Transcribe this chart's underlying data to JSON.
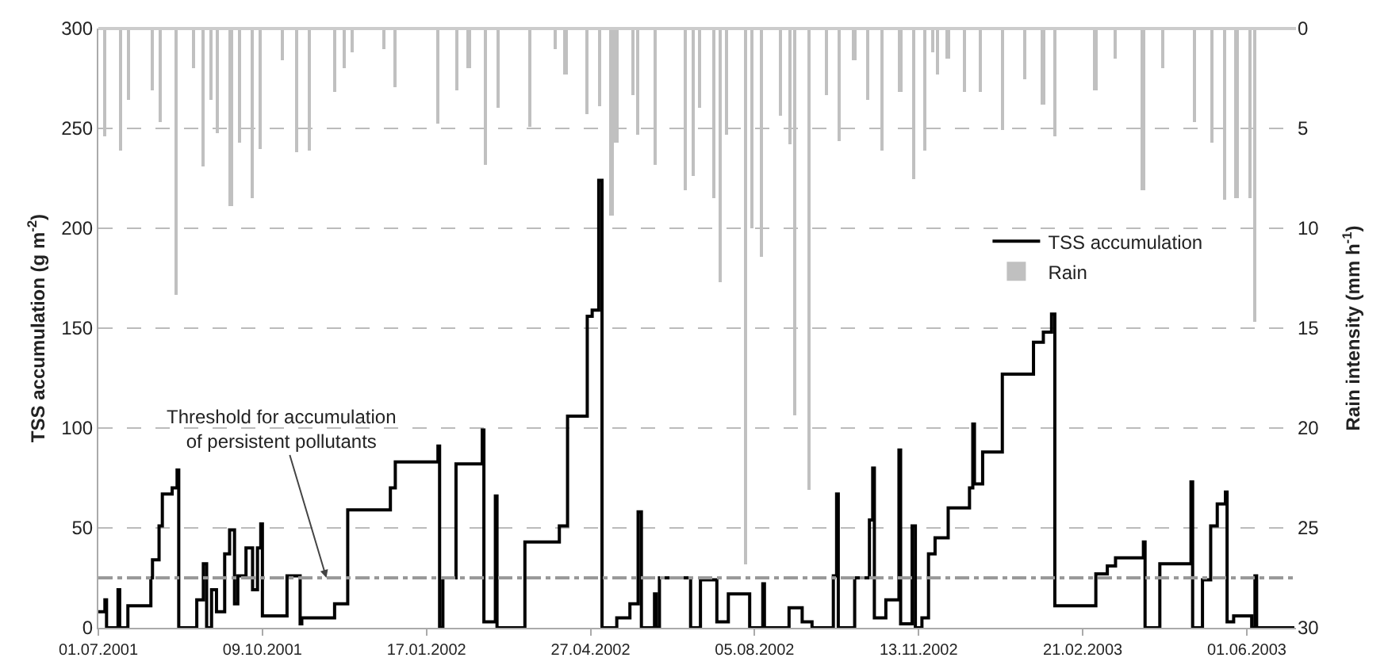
{
  "chart_data": {
    "type": "step",
    "ylabel": "TSS accumulation (g m$^{-2}$)",
    "y2label": "Rain intensity (mm h$^{-1}$)",
    "xlim": [
      "2001-07-01",
      "2003-07-01"
    ],
    "xticks": [
      {
        "value": "2001-07-01",
        "label": "01.07.2001"
      },
      {
        "value": "2001-10-09",
        "label": "09.10.2001"
      },
      {
        "value": "2002-01-17",
        "label": "17.01.2002"
      },
      {
        "value": "2002-04-27",
        "label": "27.04.2002"
      },
      {
        "value": "2002-08-05",
        "label": "05.08.2002"
      },
      {
        "value": "2002-11-13",
        "label": "13.11.2002"
      },
      {
        "value": "2003-02-21",
        "label": "21.02.2003"
      },
      {
        "value": "2003-06-01",
        "label": "01.06.2003"
      }
    ],
    "ylim": [
      0,
      300
    ],
    "yticks": [
      0,
      50,
      100,
      150,
      200,
      250,
      300
    ],
    "y2lim": [
      30,
      0
    ],
    "y2ticks": [
      0,
      5,
      10,
      15,
      20,
      25,
      30
    ],
    "grid": "y",
    "legend": "right",
    "series": [
      {
        "name": "TSS accumulation",
        "color": "#000000",
        "x": [
          "2001-07-01",
          "2001-07-05",
          "2001-07-06",
          "2001-07-13",
          "2001-07-14",
          "2001-07-19",
          "2001-08-02",
          "2001-08-03",
          "2001-08-07",
          "2001-08-09",
          "2001-08-15",
          "2001-08-18",
          "2001-08-19",
          "2001-08-30",
          "2001-09-03",
          "2001-09-05",
          "2001-09-08",
          "2001-09-11",
          "2001-09-16",
          "2001-09-19",
          "2001-09-22",
          "2001-09-24",
          "2001-09-29",
          "2001-10-03",
          "2001-10-06",
          "2001-10-08",
          "2001-10-09",
          "2001-10-24",
          "2001-11-01",
          "2001-11-02",
          "2001-11-22",
          "2001-11-30",
          "2001-12-26",
          "2001-12-29",
          "2002-01-24",
          "2002-01-25",
          "2002-01-27",
          "2002-02-04",
          "2002-02-20",
          "2002-02-21",
          "2002-02-28",
          "2002-03-01",
          "2002-03-18",
          "2002-03-21",
          "2002-04-08",
          "2002-04-13",
          "2002-04-25",
          "2002-04-28",
          "2002-05-02",
          "2002-05-04",
          "2002-05-13",
          "2002-05-21",
          "2002-05-26",
          "2002-05-28",
          "2002-06-05",
          "2002-06-06",
          "2002-06-08",
          "2002-06-27",
          "2002-07-03",
          "2002-07-13",
          "2002-07-20",
          "2002-08-02",
          "2002-08-10",
          "2002-08-11",
          "2002-08-26",
          "2002-09-03",
          "2002-09-09",
          "2002-09-22",
          "2002-09-24",
          "2002-09-25",
          "2002-10-05",
          "2002-10-14",
          "2002-10-16",
          "2002-10-17",
          "2002-10-24",
          "2002-11-01",
          "2002-11-02",
          "2002-11-09",
          "2002-11-11",
          "2002-11-15",
          "2002-11-19",
          "2002-11-23",
          "2002-12-01",
          "2002-12-14",
          "2002-12-16",
          "2002-12-17",
          "2002-12-22",
          "2003-01-03",
          "2003-01-22",
          "2003-01-28",
          "2003-02-02",
          "2003-02-04",
          "2003-03-01",
          "2003-03-08",
          "2003-03-13",
          "2003-03-30",
          "2003-03-31",
          "2003-04-09",
          "2003-04-28",
          "2003-04-29",
          "2003-05-05",
          "2003-05-10",
          "2003-05-14",
          "2003-05-19",
          "2003-05-20",
          "2003-05-24",
          "2003-06-04",
          "2003-06-06",
          "2003-06-07",
          "2003-06-30"
        ],
        "values": [
          8,
          14,
          0,
          19,
          0,
          11,
          25,
          34,
          51,
          67,
          70,
          79,
          0,
          14,
          32,
          0,
          19,
          8,
          37,
          49,
          12,
          26,
          40,
          19,
          40,
          52,
          6,
          26,
          2,
          5,
          12,
          59,
          70,
          83,
          91,
          0,
          25,
          82,
          99,
          3,
          66,
          0,
          43,
          43,
          51,
          106,
          156,
          159,
          224,
          0,
          5,
          12,
          58,
          0,
          17,
          0,
          25,
          0,
          24,
          3,
          17,
          0,
          22,
          0,
          10,
          3,
          0,
          26,
          67,
          0,
          25,
          54,
          80,
          5,
          14,
          89,
          2,
          51,
          0,
          5,
          37,
          45,
          60,
          70,
          102,
          72,
          88,
          127,
          143,
          148,
          157,
          11,
          27,
          31,
          35,
          43,
          0,
          32,
          73,
          0,
          24,
          51,
          62,
          68,
          3,
          6,
          0,
          26,
          0,
          0
        ]
      },
      {
        "name": "Rain",
        "type": "bar",
        "axis": "y2",
        "color": "#c0c0c0",
        "x": [
          "2001-07-05",
          "2001-07-15",
          "2001-07-20",
          "2001-08-03",
          "2001-08-08",
          "2001-08-18",
          "2001-08-28",
          "2001-09-03",
          "2001-09-08",
          "2001-09-12",
          "2001-09-20",
          "2001-09-25",
          "2001-10-03",
          "2001-10-08",
          "2001-10-21",
          "2001-10-30",
          "2001-11-07",
          "2001-11-22",
          "2001-11-28",
          "2001-12-03",
          "2001-12-22",
          "2001-12-29",
          "2002-01-24",
          "2002-02-05",
          "2002-02-12",
          "2002-02-22",
          "2002-03-02",
          "2002-03-21",
          "2002-04-06",
          "2002-04-12",
          "2002-04-25",
          "2002-05-03",
          "2002-05-10",
          "2002-05-13",
          "2002-05-23",
          "2002-05-26",
          "2002-06-06",
          "2002-06-24",
          "2002-06-29",
          "2002-07-03",
          "2002-07-11",
          "2002-07-15",
          "2002-07-19",
          "2002-07-31",
          "2002-08-04",
          "2002-08-09",
          "2002-08-21",
          "2002-08-27",
          "2002-08-30",
          "2002-09-07",
          "2002-09-18",
          "2002-09-26",
          "2002-10-05",
          "2002-10-13",
          "2002-10-22",
          "2002-11-02",
          "2002-11-10",
          "2002-11-17",
          "2002-11-22",
          "2002-11-25",
          "2002-12-01",
          "2002-12-11",
          "2002-12-21",
          "2003-01-03",
          "2003-01-17",
          "2003-01-28",
          "2003-02-04",
          "2003-03-01",
          "2003-03-13",
          "2003-03-30",
          "2003-04-11",
          "2003-04-30",
          "2003-05-11",
          "2003-05-19",
          "2003-05-26",
          "2003-06-03",
          "2003-06-06"
        ],
        "values": [
          5.4,
          6.1,
          3.6,
          3.1,
          4.7,
          13.3,
          2.0,
          6.9,
          3.6,
          5.2,
          8.9,
          5.7,
          8.5,
          6.0,
          1.6,
          6.2,
          6.1,
          3.2,
          2.0,
          1.2,
          1.0,
          2.9,
          4.8,
          3.1,
          2.0,
          6.8,
          4.0,
          4.9,
          1.0,
          2.3,
          4.3,
          3.9,
          9.4,
          5.7,
          3.3,
          5.3,
          6.8,
          8.1,
          7.4,
          4.0,
          8.5,
          12.7,
          5.3,
          26.8,
          10.0,
          11.4,
          4.4,
          5.8,
          19.4,
          23.1,
          3.3,
          5.6,
          1.6,
          3.6,
          6.1,
          3.2,
          7.5,
          6.1,
          1.2,
          2.3,
          1.5,
          3.2,
          3.2,
          5.1,
          2.5,
          3.8,
          5.4,
          3.1,
          1.5,
          8.1,
          2.0,
          4.7,
          5.7,
          8.6,
          8.5,
          8.5,
          14.7
        ]
      }
    ],
    "ref_lines": [
      {
        "axis": "y",
        "value": 25,
        "color": "#999999",
        "line_style": "dashed"
      }
    ],
    "annotations": [
      {
        "text": "Threshold for accumulation\nof persistent pollutants",
        "x": "2001-11-17",
        "y": 25
      }
    ]
  }
}
